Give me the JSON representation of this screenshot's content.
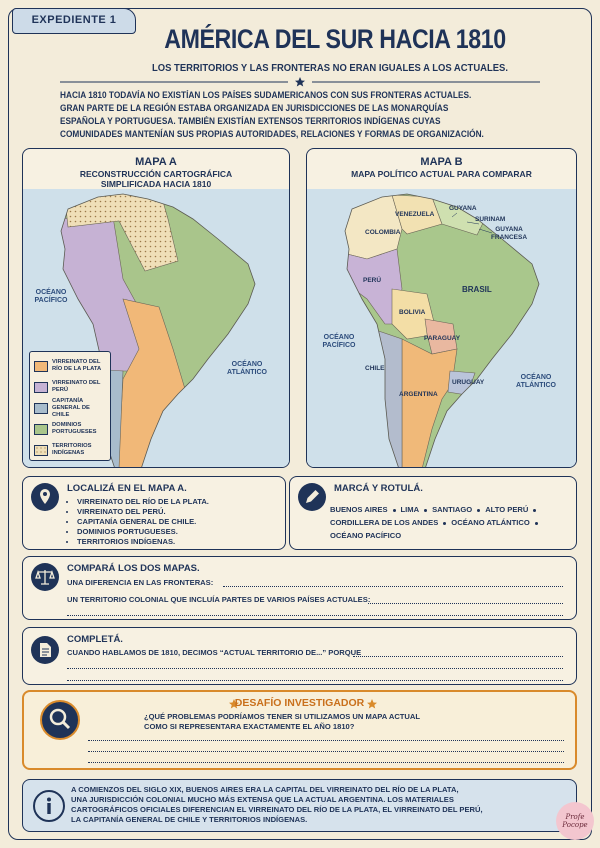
{
  "header": {
    "badge": "EXPEDIENTE 1",
    "title": "AMÉRICA DEL SUR HACIA 1810",
    "subtitle": "LOS TERRITORIOS Y LAS FRONTERAS NO ERAN IGUALES A LOS ACTUALES."
  },
  "intro": [
    "HACIA 1810 TODAVÍA NO EXISTÍAN LOS PAÍSES SUDAMERICANOS CON SUS FRONTERAS ACTUALES.",
    "GRAN PARTE DE LA REGIÓN ESTABA ORGANIZADA EN JURISDICCIONES DE LAS MONARQUÍAS",
    "ESPAÑOLA Y PORTUGUESA. TAMBIÉN EXISTÍAN EXTENSOS TERRITORIOS INDÍGENAS CUYAS",
    "COMUNIDADES MANTENÍAN SUS PROPIAS AUTORIDADES, RELACIONES Y FORMAS DE ORGANIZACIÓN."
  ],
  "map_a": {
    "title": "MAPA A",
    "subtitle": [
      "RECONSTRUCCIÓN CARTOGRÁFICA",
      "SIMPLIFICADA HACIA 1810"
    ],
    "oceans": [
      "OCÉANO PACÍFICO",
      "OCÉANO ATLÁNTICO"
    ],
    "legend": [
      {
        "label": "VIRREINATO DEL RÍO DE LA PLATA",
        "color": "#f1b878"
      },
      {
        "label": "VIRREINATO DEL PERÚ",
        "color": "#c6b2d4"
      },
      {
        "label": "CAPITANÍA GENERAL DE CHILE",
        "color": "#a8bccc"
      },
      {
        "label": "DOMINIOS PORTUGUESES",
        "color": "#a9c58b"
      },
      {
        "label": "TERRITORIOS INDÍGENAS",
        "color": "#efdfb8"
      }
    ]
  },
  "map_b": {
    "title": "MAPA B",
    "subtitle": "MAPA POLÍTICO ACTUAL PARA COMPARAR",
    "labels": [
      "VENEZUELA",
      "GUYANA",
      "SURINAM",
      "GUYANA FRANCESA",
      "COLOMBIA",
      "PERÚ",
      "BRASIL",
      "BOLIVIA",
      "PARAGUAY",
      "CHILE",
      "URUGUAY",
      "ARGENTINA",
      "OCÉANO PACÍFICO",
      "OCÉANO ATLÁNTICO"
    ]
  },
  "locate": {
    "title": "LOCALIZÁ EN EL MAPA A.",
    "items": [
      "VIRREINATO DEL RÍO DE LA PLATA.",
      "VIRREINATO DEL PERÚ.",
      "CAPITANÍA GENERAL DE CHILE.",
      "DOMINIOS PORTUGUESES.",
      "TERRITORIOS INDÍGENAS."
    ]
  },
  "mark": {
    "title": "MARCÁ Y ROTULÁ.",
    "rows": [
      [
        "BUENOS AIRES",
        "LIMA",
        "SANTIAGO",
        "ALTO PERÚ"
      ],
      [
        "CORDILLERA DE LOS ANDES",
        "OCÉANO ATLÁNTICO"
      ],
      [
        "OCÉANO PACÍFICO"
      ]
    ]
  },
  "compare": {
    "title": "COMPARÁ LOS DOS MAPAS.",
    "prompts": [
      "UNA DIFERENCIA EN LAS FRONTERAS:",
      "UN TERRITORIO COLONIAL QUE INCLUÍA PARTES DE VARIOS PAÍSES ACTUALES:"
    ]
  },
  "complete": {
    "title": "COMPLETÁ.",
    "prompt": "CUANDO HABLAMOS DE 1810, DECIMOS “ACTUAL TERRITORIO DE...” PORQUE"
  },
  "challenge": {
    "title": "DESAFÍO INVESTIGADOR",
    "question": [
      "¿QUÉ PROBLEMAS PODRÍAMOS TENER SI UTILIZAMOS UN MAPA ACTUAL",
      "COMO SI REPRESENTARA EXACTAMENTE EL AÑO 1810?"
    ]
  },
  "info": [
    "A COMIENZOS DEL SIGLO XIX, BUENOS AIRES ERA LA CAPITAL DEL VIRREINATO DEL RÍO DE LA PLATA,",
    "UNA JURISDICCIÓN COLONIAL MUCHO MÁS EXTENSA QUE LA ACTUAL ARGENTINA. LOS MATERIALES",
    "CARTOGRÁFICOS OFICIALES DIFERENCIAN EL VIRREINATO DEL RÍO DE LA PLATA, EL VIRREINATO DEL PERÚ,",
    "LA CAPITANÍA GENERAL DE CHILE Y TERRITORIOS INDÍGENAS."
  ],
  "logo": "Profe Pocope"
}
